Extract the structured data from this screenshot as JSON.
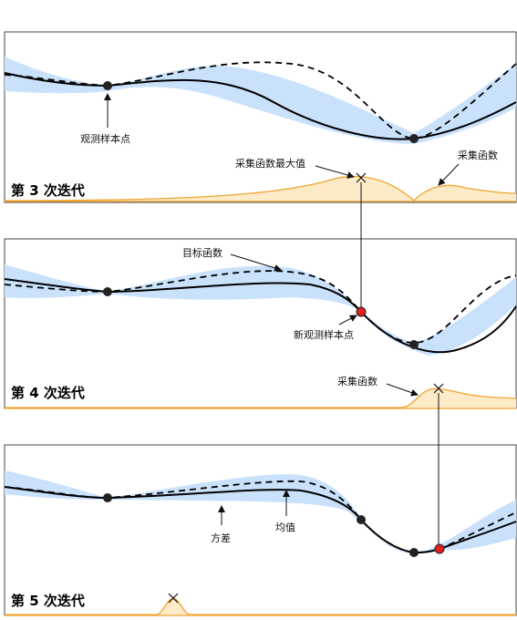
{
  "panels": [
    {
      "title": "第 3 次迭代",
      "annotations": {
        "observed_point": "观测样本点",
        "acq_max": "采集函数最大值",
        "acq_function": "采集函数"
      }
    },
    {
      "title": "第 4 次迭代",
      "annotations": {
        "objective": "目标函数",
        "new_point": "新观测样本点",
        "acq_function": "采集函数"
      }
    },
    {
      "title": "第 5 次迭代",
      "annotations": {
        "variance": "方差",
        "mean": "均值"
      }
    }
  ],
  "colors": {
    "uncertainty_band": "#c9e1fb",
    "acquisition_fill": "#fdebc8",
    "acquisition_line": "#f0a330",
    "observed_point": "#222222",
    "new_point": "#e01f1f"
  },
  "legend_semantics": {
    "solid_line": "mean",
    "dashed_line": "objective",
    "shaded_band": "variance"
  }
}
